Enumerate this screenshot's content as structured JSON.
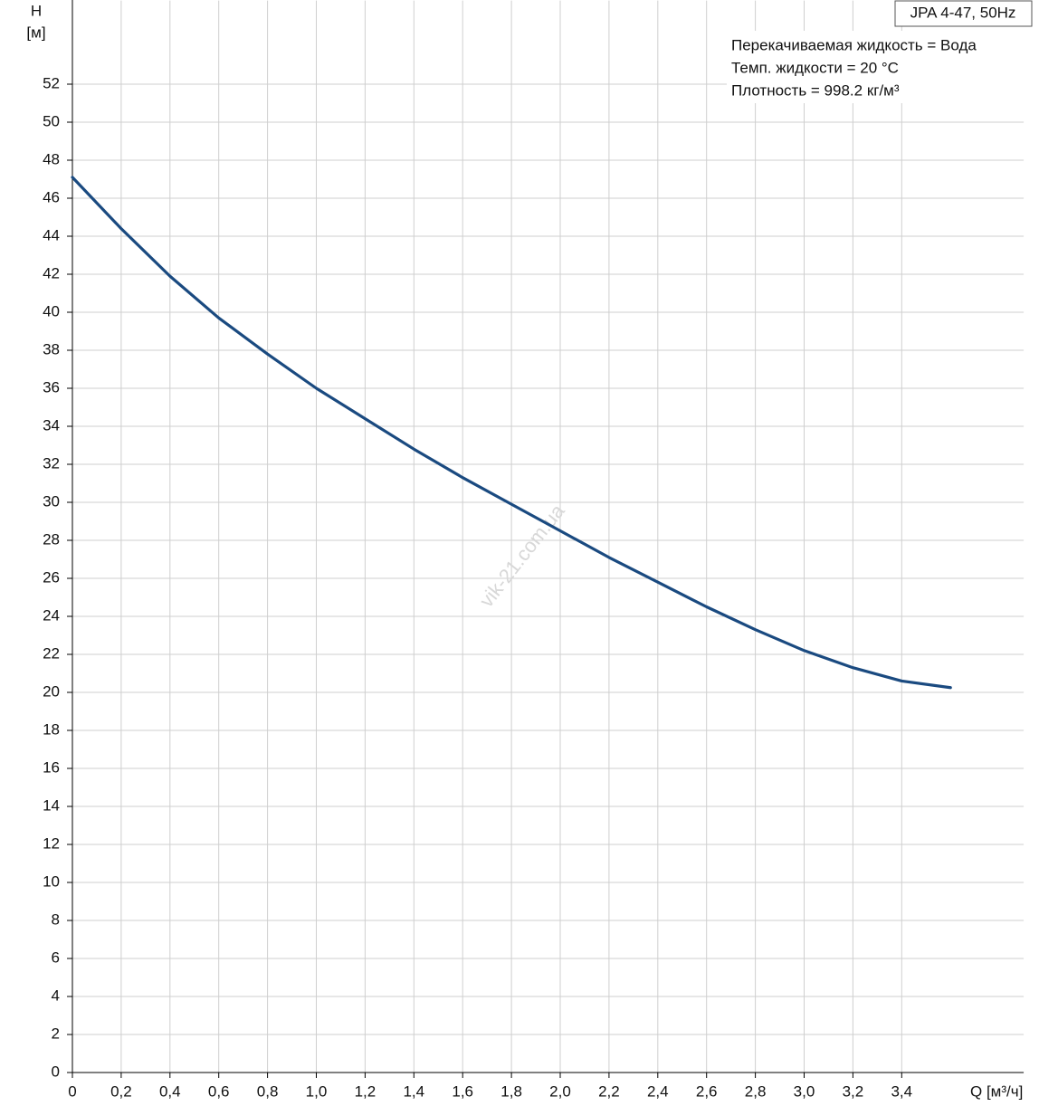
{
  "chart_data": {
    "type": "line",
    "title": "JPA 4-47, 50Hz",
    "y_label": "H",
    "y_unit": "[м]",
    "x_label": "Q [м³/ч]",
    "annotations": [
      "Перекачиваемая жидкость = Вода",
      "Темп. жидкости = 20 °C",
      "Плотность = 998.2 кг/м³"
    ],
    "watermark": "vik-21.com.ua",
    "x": [
      0,
      0.2,
      0.4,
      0.6,
      0.8,
      1.0,
      1.2,
      1.4,
      1.6,
      1.8,
      2.0,
      2.2,
      2.4,
      2.6,
      2.8,
      3.0,
      3.2,
      3.4,
      3.6
    ],
    "series": [
      {
        "name": "JPA 4-47",
        "color": "#1a4a80",
        "values": [
          47.1,
          44.4,
          41.9,
          39.7,
          37.8,
          36.0,
          34.4,
          32.8,
          31.3,
          29.9,
          28.5,
          27.1,
          25.8,
          24.5,
          23.3,
          22.2,
          21.3,
          20.6,
          20.25
        ]
      }
    ],
    "xlim": [
      0,
      3.9
    ],
    "ylim": [
      0,
      56.4
    ],
    "xticks": [
      0,
      {
        "value": 0.2,
        "label": "0,2"
      },
      {
        "value": 0.4,
        "label": "0,4"
      },
      {
        "value": 0.6,
        "label": "0,6"
      },
      {
        "value": 0.8,
        "label": "0,8"
      },
      {
        "value": 1.0,
        "label": "1,0"
      },
      {
        "value": 1.2,
        "label": "1,2"
      },
      {
        "value": 1.4,
        "label": "1,4"
      },
      {
        "value": 1.6,
        "label": "1,6"
      },
      {
        "value": 1.8,
        "label": "1,8"
      },
      {
        "value": 2.0,
        "label": "2,0"
      },
      {
        "value": 2.2,
        "label": "2,2"
      },
      {
        "value": 2.4,
        "label": "2,4"
      },
      {
        "value": 2.6,
        "label": "2,6"
      },
      {
        "value": 2.8,
        "label": "2,8"
      },
      {
        "value": 3.0,
        "label": "3,0"
      },
      {
        "value": 3.2,
        "label": "3,2"
      },
      {
        "value": 3.4,
        "label": "3,4"
      }
    ],
    "yticks": [
      0,
      2,
      4,
      6,
      8,
      10,
      12,
      14,
      16,
      18,
      20,
      22,
      24,
      26,
      28,
      30,
      32,
      34,
      36,
      38,
      40,
      42,
      44,
      46,
      48,
      50,
      52
    ],
    "grid": true
  }
}
